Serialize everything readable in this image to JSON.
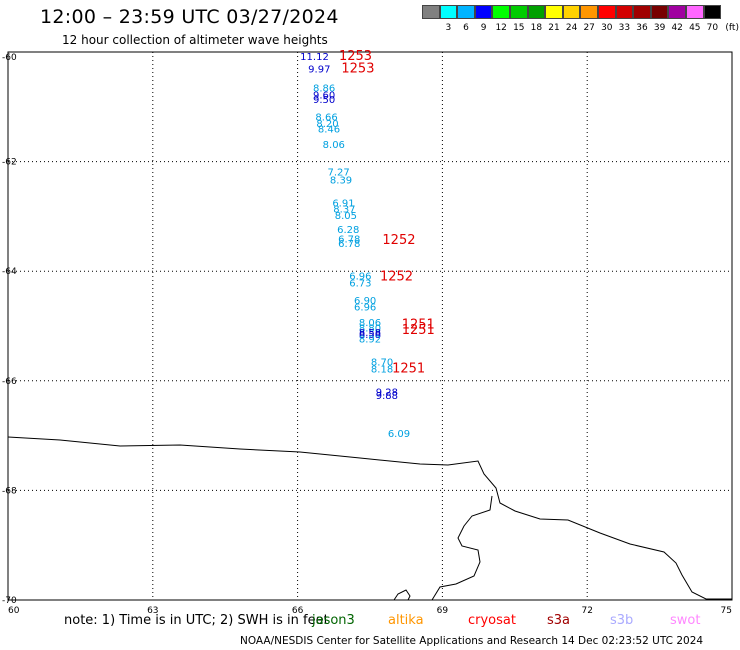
{
  "header": {
    "title": "12:00 – 23:59 UTC 03/27/2024",
    "subtitle": "12 hour collection of altimeter wave heights"
  },
  "scale": {
    "unit": "(ft)",
    "bins": [
      {
        "label": "",
        "color": "#808080"
      },
      {
        "label": "3",
        "color": "#00ffff"
      },
      {
        "label": "6",
        "color": "#00b4ff"
      },
      {
        "label": "9",
        "color": "#0000ff"
      },
      {
        "label": "12",
        "color": "#00ff00"
      },
      {
        "label": "15",
        "color": "#00cc00"
      },
      {
        "label": "18",
        "color": "#00a000"
      },
      {
        "label": "21",
        "color": "#ffff00"
      },
      {
        "label": "24",
        "color": "#ffd200"
      },
      {
        "label": "27",
        "color": "#ff9600"
      },
      {
        "label": "30",
        "color": "#ff0000"
      },
      {
        "label": "33",
        "color": "#d20000"
      },
      {
        "label": "36",
        "color": "#a00000"
      },
      {
        "label": "39",
        "color": "#780000"
      },
      {
        "label": "42",
        "color": "#a000a0"
      },
      {
        "label": "45",
        "color": "#ff66ff"
      },
      {
        "label": "70",
        "color": "#000000"
      }
    ]
  },
  "footer": {
    "note": "note:  1) Time is in UTC;  2) SWH is in feet",
    "satellites": [
      {
        "name": "jason3",
        "color": "#006400"
      },
      {
        "name": "altika",
        "color": "#ff9600"
      },
      {
        "name": "cryosat",
        "color": "#ff0000"
      },
      {
        "name": "s3a",
        "color": "#a00000"
      },
      {
        "name": "s3b",
        "color": "#aaaaff"
      },
      {
        "name": "swot",
        "color": "#ff88ff"
      }
    ],
    "credit": "NOAA/NESDIS Center for Satellite Applications and Research     14 Dec 02:23:52 UTC 2024"
  },
  "chart_data": {
    "type": "scatter",
    "title": "12:00 – 23:59 UTC 03/27/2024",
    "xlim": [
      60,
      75
    ],
    "ylim": [
      -70,
      -60
    ],
    "x_ticks": [
      "60",
      "63",
      "66",
      "69",
      "72",
      "75"
    ],
    "y_ticks": [
      "-60",
      "-62",
      "-64",
      "-66",
      "-68",
      "-70"
    ],
    "grid": true,
    "wave_heights": [
      {
        "x": 66.35,
        "y": -60.15,
        "label": "11.12",
        "color": "#0000cc"
      },
      {
        "x": 66.45,
        "y": -60.37,
        "label": "9.97",
        "color": "#0000cc"
      },
      {
        "x": 66.55,
        "y": -60.72,
        "label": "8.86",
        "color": "#00a0e0"
      },
      {
        "x": 66.55,
        "y": -60.85,
        "label": "9.60",
        "color": "#0000cc"
      },
      {
        "x": 66.55,
        "y": -60.93,
        "label": "9.50",
        "color": "#0000cc"
      },
      {
        "x": 66.6,
        "y": -61.25,
        "label": "8.66",
        "color": "#00a0e0"
      },
      {
        "x": 66.62,
        "y": -61.37,
        "label": "8.20",
        "color": "#00a0e0"
      },
      {
        "x": 66.65,
        "y": -61.47,
        "label": "8.46",
        "color": "#00a0e0"
      },
      {
        "x": 66.75,
        "y": -61.75,
        "label": "8.06",
        "color": "#00a0e0"
      },
      {
        "x": 66.85,
        "y": -62.25,
        "label": "7.27",
        "color": "#00a0e0"
      },
      {
        "x": 66.9,
        "y": -62.4,
        "label": "8.39",
        "color": "#00a0e0"
      },
      {
        "x": 66.95,
        "y": -62.82,
        "label": "6.91",
        "color": "#00a0e0"
      },
      {
        "x": 66.97,
        "y": -62.93,
        "label": "8.37",
        "color": "#00a0e0"
      },
      {
        "x": 67.0,
        "y": -63.05,
        "label": "8.05",
        "color": "#00a0e0"
      },
      {
        "x": 67.05,
        "y": -63.3,
        "label": "6.28",
        "color": "#00a0e0"
      },
      {
        "x": 67.07,
        "y": -63.48,
        "label": "6.78",
        "color": "#00a0e0"
      },
      {
        "x": 67.07,
        "y": -63.56,
        "label": "6.78",
        "color": "#00a0e0"
      },
      {
        "x": 67.3,
        "y": -64.15,
        "label": "6.96",
        "color": "#00a0e0"
      },
      {
        "x": 67.3,
        "y": -64.28,
        "label": "6.73",
        "color": "#00a0e0"
      },
      {
        "x": 67.4,
        "y": -64.6,
        "label": "6.90",
        "color": "#00a0e0"
      },
      {
        "x": 67.4,
        "y": -64.72,
        "label": "6.96",
        "color": "#00a0e0"
      },
      {
        "x": 67.5,
        "y": -65.0,
        "label": "8.06",
        "color": "#00a0e0"
      },
      {
        "x": 67.5,
        "y": -65.1,
        "label": "8.80",
        "color": "#00a0e0"
      },
      {
        "x": 67.5,
        "y": -65.18,
        "label": "8.58",
        "color": "#0000cc"
      },
      {
        "x": 67.5,
        "y": -65.22,
        "label": "8.58",
        "color": "#0000cc"
      },
      {
        "x": 67.5,
        "y": -65.3,
        "label": "8.92",
        "color": "#00a0e0"
      },
      {
        "x": 67.75,
        "y": -65.72,
        "label": "8.70",
        "color": "#00a0e0"
      },
      {
        "x": 67.75,
        "y": -65.85,
        "label": "8.18",
        "color": "#00a0e0"
      },
      {
        "x": 67.85,
        "y": -66.27,
        "label": "9.28",
        "color": "#0000cc"
      },
      {
        "x": 67.85,
        "y": -66.33,
        "label": "9.88",
        "color": "#0000cc"
      },
      {
        "x": 68.1,
        "y": -67.03,
        "label": "6.09",
        "color": "#00a0e0"
      }
    ],
    "track_ids": [
      {
        "x": 67.2,
        "y": -60.15,
        "label": "1253",
        "color": "#e00000"
      },
      {
        "x": 67.25,
        "y": -60.37,
        "label": "1253",
        "color": "#e00000"
      },
      {
        "x": 68.1,
        "y": -63.5,
        "label": "1252",
        "color": "#e00000"
      },
      {
        "x": 68.05,
        "y": -64.17,
        "label": "1252",
        "color": "#e00000"
      },
      {
        "x": 68.5,
        "y": -65.05,
        "label": "1251",
        "color": "#e00000"
      },
      {
        "x": 68.5,
        "y": -65.15,
        "label": "1251",
        "color": "#e00000"
      },
      {
        "x": 68.3,
        "y": -65.85,
        "label": "1251",
        "color": "#e00000"
      }
    ]
  }
}
